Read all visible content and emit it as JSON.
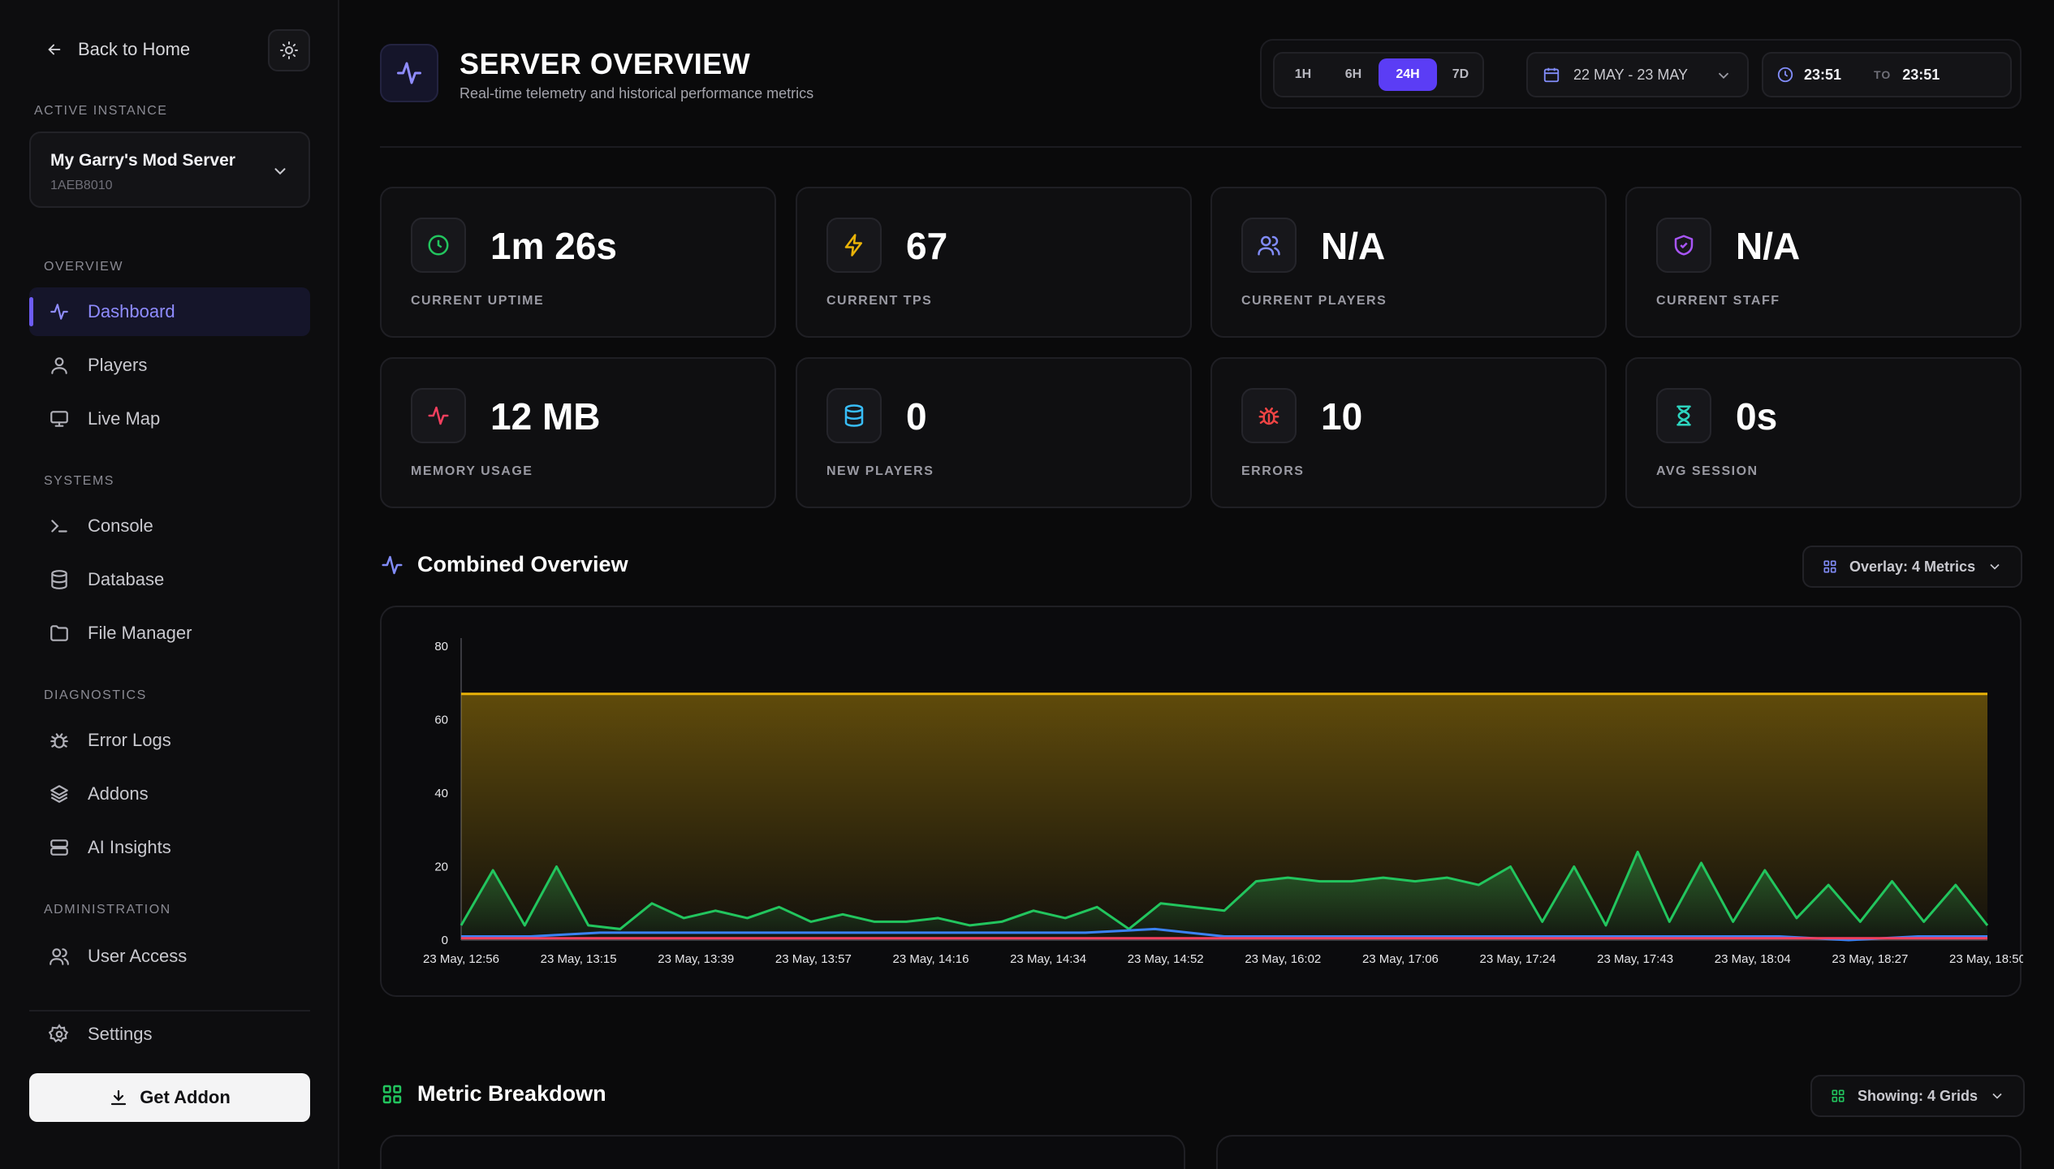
{
  "sidebar": {
    "back_label": "Back to Home",
    "active_instance_label": "ACTIVE INSTANCE",
    "instance": {
      "name": "My Garry's Mod Server",
      "id": "1AEB8010"
    },
    "sections": {
      "overview": "OVERVIEW",
      "systems": "SYSTEMS",
      "diagnostics": "DIAGNOSTICS",
      "administration": "ADMINISTRATION"
    },
    "items": {
      "dashboard": "Dashboard",
      "players": "Players",
      "live_map": "Live Map",
      "console": "Console",
      "database": "Database",
      "file_manager": "File Manager",
      "error_logs": "Error Logs",
      "addons": "Addons",
      "ai_insights": "AI Insights",
      "user_access": "User Access",
      "settings": "Settings"
    },
    "get_addon_label": "Get Addon"
  },
  "header": {
    "title": "SERVER OVERVIEW",
    "subtitle": "Real-time telemetry and historical performance metrics",
    "ranges": [
      "1H",
      "6H",
      "24H",
      "7D"
    ],
    "active_range": "24H",
    "date_range": "22 MAY - 23 MAY",
    "time_from": "23:51",
    "time_to_label": "TO",
    "time_to": "23:51"
  },
  "stats": [
    {
      "value": "1m 26s",
      "label": "CURRENT UPTIME",
      "icon": "clock-icon",
      "color": "#22c55e"
    },
    {
      "value": "67",
      "label": "CURRENT TPS",
      "icon": "bolt-icon",
      "color": "#eab308"
    },
    {
      "value": "N/A",
      "label": "CURRENT PLAYERS",
      "icon": "users-icon",
      "color": "#818cf8"
    },
    {
      "value": "N/A",
      "label": "CURRENT STAFF",
      "icon": "shield-icon",
      "color": "#a855f7"
    },
    {
      "value": "12 MB",
      "label": "MEMORY USAGE",
      "icon": "pulse-icon",
      "color": "#f43f5e"
    },
    {
      "value": "0",
      "label": "NEW PLAYERS",
      "icon": "database-icon",
      "color": "#38bdf8"
    },
    {
      "value": "10",
      "label": "ERRORS",
      "icon": "bug-icon",
      "color": "#ef4444"
    },
    {
      "value": "0s",
      "label": "AVG SESSION",
      "icon": "hourglass-icon",
      "color": "#2dd4bf"
    }
  ],
  "combined": {
    "title": "Combined Overview",
    "overlay_label": "Overlay: 4 Metrics"
  },
  "breakdown": {
    "title": "Metric Breakdown",
    "showing_label": "Showing: 4 Grids"
  },
  "chart_data": {
    "type": "area",
    "ylim": [
      0,
      80
    ],
    "yticks": [
      0,
      20,
      40,
      60,
      80
    ],
    "x_tick_labels": [
      "23 May, 12:56",
      "23 May, 13:15",
      "23 May, 13:39",
      "23 May, 13:57",
      "23 May, 14:16",
      "23 May, 14:34",
      "23 May, 14:52",
      "23 May, 16:02",
      "23 May, 17:06",
      "23 May, 17:24",
      "23 May, 17:43",
      "23 May, 18:04",
      "23 May, 18:27",
      "23 May, 18:50"
    ],
    "grid": false,
    "series": [
      {
        "color": "#eab308",
        "fill": true,
        "values": [
          67,
          67,
          67,
          67,
          67,
          67,
          67,
          67,
          67,
          67,
          67,
          67,
          67,
          67
        ]
      },
      {
        "color": "#22c55e",
        "fill": true,
        "values": [
          4,
          19,
          4,
          20,
          4,
          3,
          10,
          6,
          8,
          6,
          9,
          5,
          7,
          5,
          5,
          6,
          4,
          5,
          8,
          6,
          9,
          3,
          10,
          9,
          8,
          16,
          17,
          16,
          16,
          17,
          16,
          17,
          15,
          20,
          5,
          20,
          4,
          24,
          5,
          21,
          5,
          19,
          6,
          15,
          5,
          16,
          5,
          15,
          4
        ]
      },
      {
        "color": "#3b82f6",
        "fill": false,
        "values": [
          1,
          1,
          2,
          2,
          2,
          2,
          2,
          2,
          2,
          2,
          3,
          1,
          1,
          1,
          1,
          1,
          1,
          1,
          1,
          1,
          0,
          1,
          1
        ]
      },
      {
        "color": "#f43f5e",
        "fill": false,
        "values": [
          0.5,
          0.5,
          0.5,
          0.5,
          0.5,
          0.5,
          0.5,
          0.5,
          0.5,
          0.5,
          0.5,
          0.5,
          0.5,
          0.5
        ]
      }
    ]
  }
}
